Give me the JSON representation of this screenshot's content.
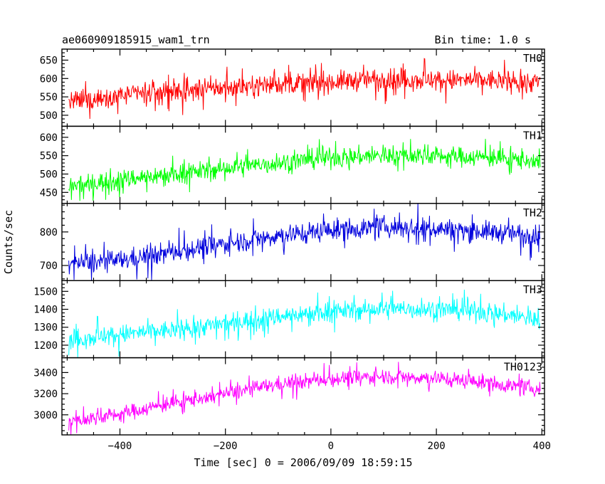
{
  "chart_data": {
    "type": "line",
    "title": "ae060909185915_wam1_trn",
    "subtitle": "Bin time: 1.0 s",
    "xlabel": "Time [sec] 0 = 2006/09/09 18:59:15",
    "ylabel": "Counts/sec",
    "xlim": [
      -510,
      405
    ],
    "xticks": [
      -400,
      -200,
      0,
      200,
      400
    ],
    "xtick_labels": [
      "−400",
      "−200",
      "0",
      "200",
      "400"
    ],
    "x_minor_step": 50,
    "grid": false,
    "time_range": [
      -497,
      397
    ],
    "panels": [
      {
        "name": "TH0",
        "color": "#ff0000",
        "ylim": [
          470,
          680
        ],
        "yticks": [
          500,
          550,
          600,
          650
        ],
        "y_minor_step": 10,
        "trend": [
          [
            -497,
            535
          ],
          [
            -400,
            555
          ],
          [
            -300,
            565
          ],
          [
            -200,
            575
          ],
          [
            -100,
            585
          ],
          [
            0,
            590
          ],
          [
            100,
            600
          ],
          [
            200,
            595
          ],
          [
            300,
            595
          ],
          [
            397,
            590
          ]
        ],
        "noise": 24,
        "spike": 40
      },
      {
        "name": "TH1",
        "color": "#00ff00",
        "ylim": [
          420,
          630
        ],
        "yticks": [
          450,
          500,
          550,
          600
        ],
        "y_minor_step": 10,
        "trend": [
          [
            -497,
            465
          ],
          [
            -400,
            485
          ],
          [
            -300,
            500
          ],
          [
            -200,
            515
          ],
          [
            -100,
            530
          ],
          [
            0,
            545
          ],
          [
            100,
            550
          ],
          [
            200,
            550
          ],
          [
            300,
            545
          ],
          [
            397,
            535
          ]
        ],
        "noise": 22,
        "spike": 35
      },
      {
        "name": "TH2",
        "color": "#0000dd",
        "ylim": [
          655,
          885
        ],
        "yticks": [
          700,
          800
        ],
        "y_minor_step": 20,
        "trend": [
          [
            -497,
            705
          ],
          [
            -400,
            715
          ],
          [
            -300,
            740
          ],
          [
            -200,
            765
          ],
          [
            -100,
            790
          ],
          [
            0,
            805
          ],
          [
            100,
            815
          ],
          [
            200,
            810
          ],
          [
            300,
            800
          ],
          [
            397,
            790
          ]
        ],
        "noise": 26,
        "spike": 45
      },
      {
        "name": "TH3",
        "color": "#00ffff",
        "ylim": [
          1130,
          1560
        ],
        "yticks": [
          1200,
          1300,
          1400,
          1500
        ],
        "y_minor_step": 20,
        "trend": [
          [
            -497,
            1230
          ],
          [
            -400,
            1260
          ],
          [
            -300,
            1285
          ],
          [
            -200,
            1320
          ],
          [
            -100,
            1360
          ],
          [
            0,
            1390
          ],
          [
            100,
            1400
          ],
          [
            200,
            1400
          ],
          [
            300,
            1385
          ],
          [
            397,
            1340
          ]
        ],
        "noise": 45,
        "spike": 80
      },
      {
        "name": "TH0123",
        "color": "#ff00ff",
        "ylim": [
          2810,
          3540
        ],
        "yticks": [
          3000,
          3200,
          3400
        ],
        "y_minor_step": 50,
        "trend": [
          [
            -497,
            2930
          ],
          [
            -400,
            3010
          ],
          [
            -300,
            3110
          ],
          [
            -200,
            3200
          ],
          [
            -100,
            3290
          ],
          [
            0,
            3340
          ],
          [
            100,
            3365
          ],
          [
            200,
            3350
          ],
          [
            300,
            3300
          ],
          [
            397,
            3240
          ]
        ],
        "noise": 60,
        "spike": 100
      }
    ]
  }
}
